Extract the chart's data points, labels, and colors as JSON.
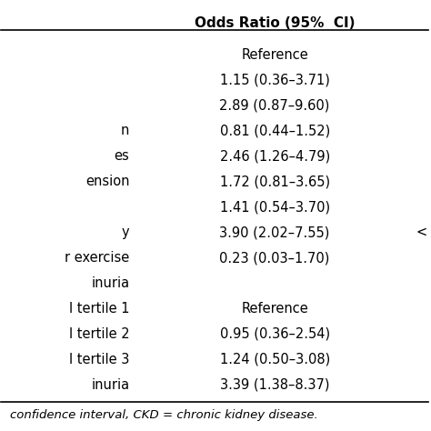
{
  "title": "Odds Ratio (95%  CI)",
  "rows": [
    {
      "label": "",
      "value": "Reference",
      "pval": ""
    },
    {
      "label": "",
      "value": "1.15 (0.36–3.71)",
      "pval": ""
    },
    {
      "label": "",
      "value": "2.89 (0.87–9.60)",
      "pval": ""
    },
    {
      "label": "n",
      "value": "0.81 (0.44–1.52)",
      "pval": ""
    },
    {
      "label": "es",
      "value": "2.46 (1.26–4.79)",
      "pval": ""
    },
    {
      "label": "ension",
      "value": "1.72 (0.81–3.65)",
      "pval": ""
    },
    {
      "label": "",
      "value": "1.41 (0.54–3.70)",
      "pval": ""
    },
    {
      "label": "y",
      "value": "3.90 (2.02–7.55)",
      "pval": "<"
    },
    {
      "label": "r exercise",
      "value": "0.23 (0.03–1.70)",
      "pval": ""
    },
    {
      "label": "inuria",
      "value": "",
      "pval": ""
    },
    {
      "label": "l tertile 1",
      "value": "Reference",
      "pval": ""
    },
    {
      "label": "l tertile 2",
      "value": "0.95 (0.36–2.54)",
      "pval": ""
    },
    {
      "label": "l tertile 3",
      "value": "1.24 (0.50–3.08)",
      "pval": ""
    },
    {
      "label": "inuria",
      "value": "3.39 (1.38–8.37)",
      "pval": ""
    }
  ],
  "footnote": "confidence interval, CKD = chronic kidney disease.",
  "bg_color": "#ffffff",
  "text_color": "#000000",
  "line_color": "#000000",
  "title_fontsize": 11,
  "body_fontsize": 10.5,
  "footnote_fontsize": 9.5
}
